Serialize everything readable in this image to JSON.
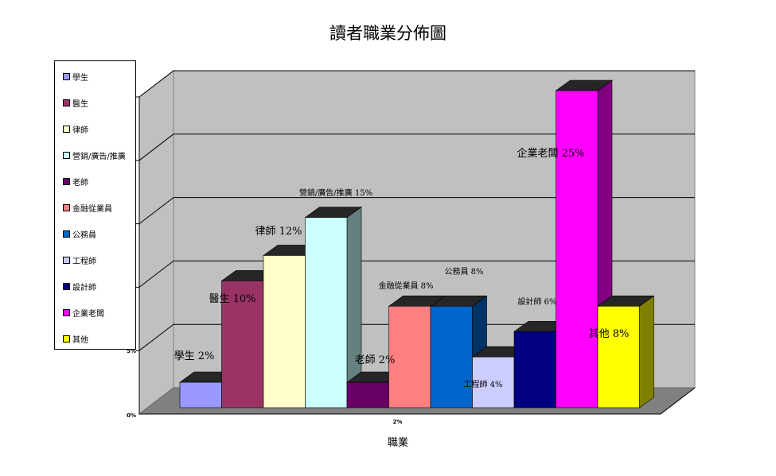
{
  "chart_data": {
    "type": "bar",
    "title": "讀者職業分佈圖",
    "xlabel": "職業",
    "ylabel": "",
    "ylim": [
      0,
      25
    ],
    "grid": true,
    "three_d": true,
    "legend_position": "left",
    "x_tick": "2%",
    "y_ticks": [
      "0%",
      "5%"
    ],
    "categories": [
      "學生",
      "醫生",
      "律師",
      "營銷/廣告/推廣",
      "老師",
      "金融從業員",
      "公務員",
      "工程師",
      "設計師",
      "企業老闆",
      "其他"
    ],
    "values": [
      2,
      10,
      12,
      15,
      2,
      8,
      8,
      4,
      6,
      25,
      8
    ],
    "data_labels": [
      "學生 2%",
      "醫生 10%",
      "律師 12%",
      "營銷/廣告/推廣 15%",
      "老師 2%",
      "金融從業員 8%",
      "公務員 8%",
      "工程師 4%",
      "設計師 6%",
      "企業老闆 25%",
      "其他 8%"
    ],
    "colors": [
      "#9999FF",
      "#993366",
      "#FFFFCC",
      "#CCFFFF",
      "#660066",
      "#FF8080",
      "#0066CC",
      "#CCCCFF",
      "#000080",
      "#FF00FF",
      "#FFFF00"
    ]
  }
}
